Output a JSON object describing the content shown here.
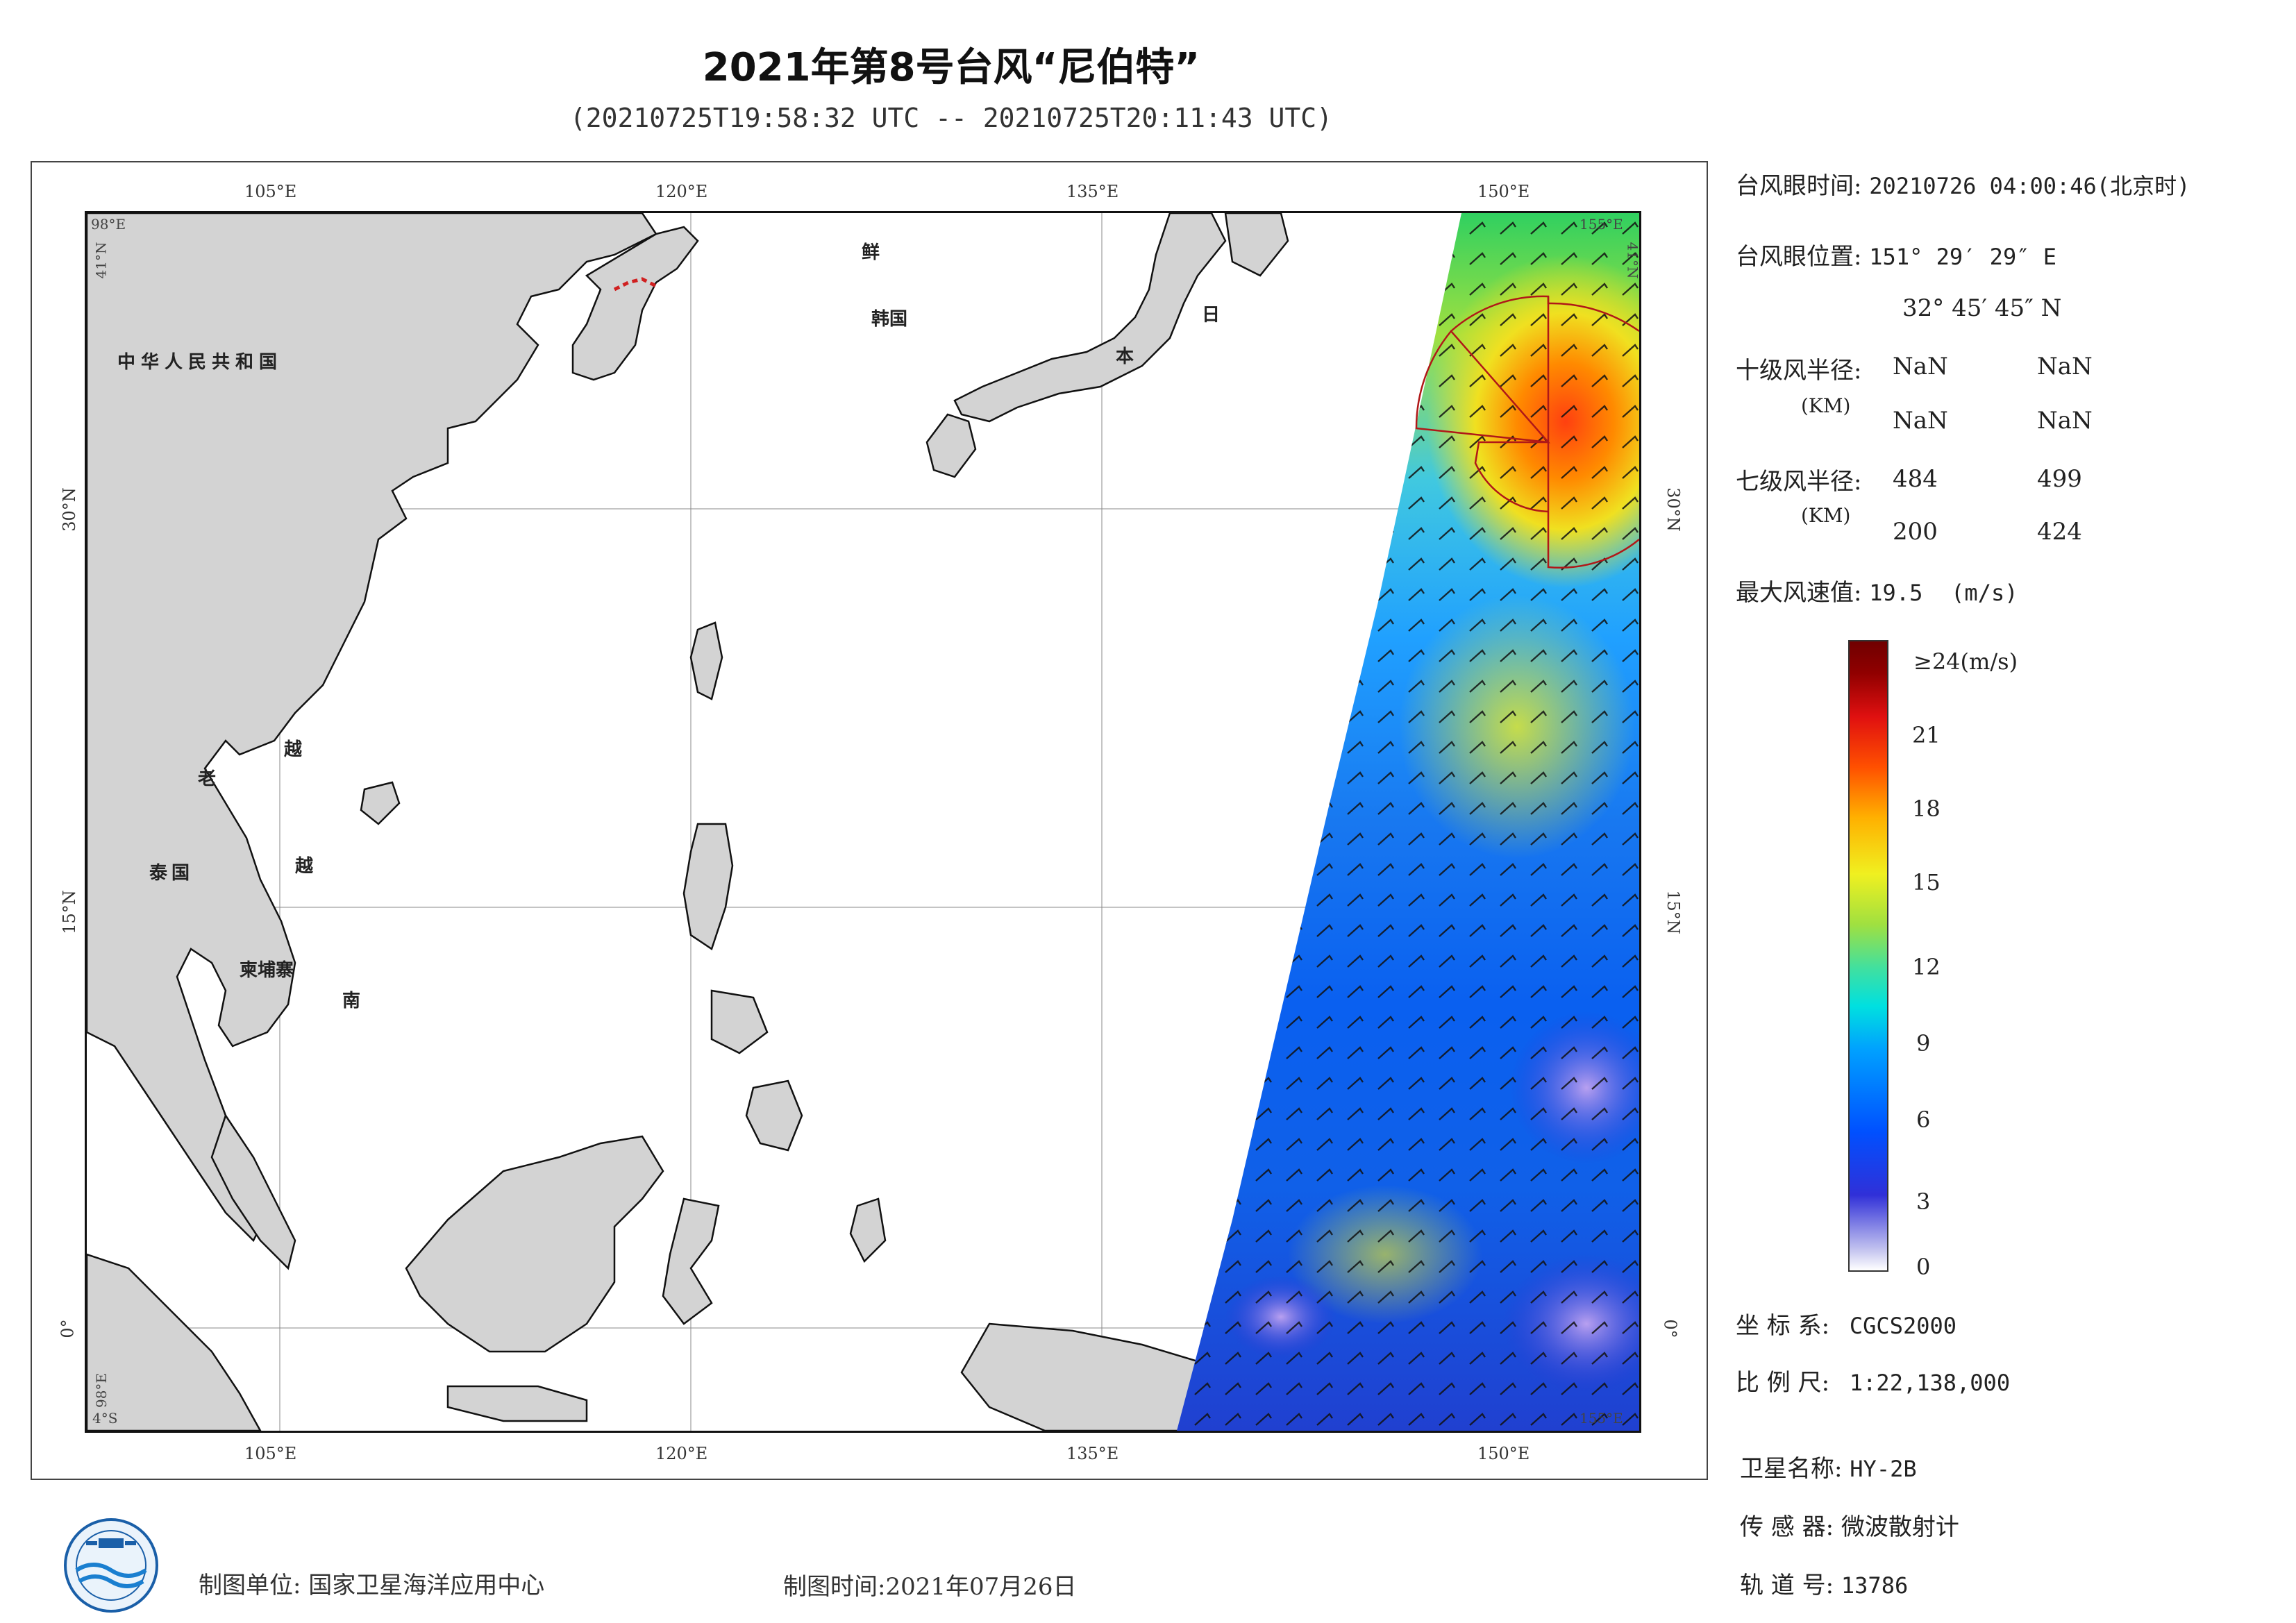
{
  "title": "2021年第8号台风“尼伯特”",
  "subtitle": "(20210725T19:58:32 UTC -- 20210725T20:11:43 UTC)",
  "map": {
    "lon_ticks": [
      "105°E",
      "120°E",
      "135°E",
      "150°E"
    ],
    "lat_ticks": [
      "30°N",
      "15°N",
      "0°"
    ],
    "corner_labels": {
      "top_left_lon": "98°E",
      "top_left_lat": "41°N",
      "top_right_lon": "155°E",
      "top_right_lat": "41°N",
      "bottom_left_lat": "4°S",
      "bottom_left_lon": "98°E",
      "bottom_right_lon": "155°E"
    },
    "country_labels": {
      "china": "中华人民共和国",
      "nk": "鲜",
      "sk": "韩国",
      "ri": "日",
      "ben": "本",
      "lao": "老",
      "yue": "越",
      "tai": "泰国",
      "jian": "柬埔寨",
      "nan": "南",
      "ying": "越"
    },
    "land_color": "#d3d3d3",
    "coast_color": "#111111"
  },
  "info": {
    "eye_time_label": "台风眼时间:",
    "eye_time_value": "20210726 04:00:46(北京时)",
    "eye_pos_label": "台风眼位置:",
    "eye_pos_lon": "151° 29′ 29″ E",
    "eye_pos_lat": "32° 45′ 45″ N",
    "r10_label": "十级风半径:",
    "r10_unit": "(KM)",
    "r10_values": [
      "NaN",
      "NaN",
      "NaN",
      "NaN"
    ],
    "r7_label": "七级风半径:",
    "r7_unit": "(KM)",
    "r7_values": [
      "484",
      "499",
      "200",
      "424"
    ],
    "max_wind_label": "最大风速值:",
    "max_wind_value": "19.5",
    "max_wind_unit": "(m/s)"
  },
  "colorbar": {
    "top_label": "≥24(m/s)",
    "ticks": [
      "21",
      "18",
      "15",
      "12",
      "9",
      "6",
      "3",
      "0"
    ]
  },
  "meta_block": {
    "crs_label": "坐 标 系:",
    "crs_value": "CGCS2000",
    "scale_label": "比 例 尺:",
    "scale_value": "1:22,138,000",
    "sat_label": "卫星名称:",
    "sat_value": "HY-2B",
    "sensor_label": "传 感 器:",
    "sensor_value": "微波散射计",
    "orbit_label": "轨 道 号:",
    "orbit_value": "13786"
  },
  "footer": {
    "unit_label": "制图单位:",
    "unit_value": "国家卫星海洋应用中心",
    "time_label": "制图时间:",
    "time_value": "2021年07月26日"
  }
}
